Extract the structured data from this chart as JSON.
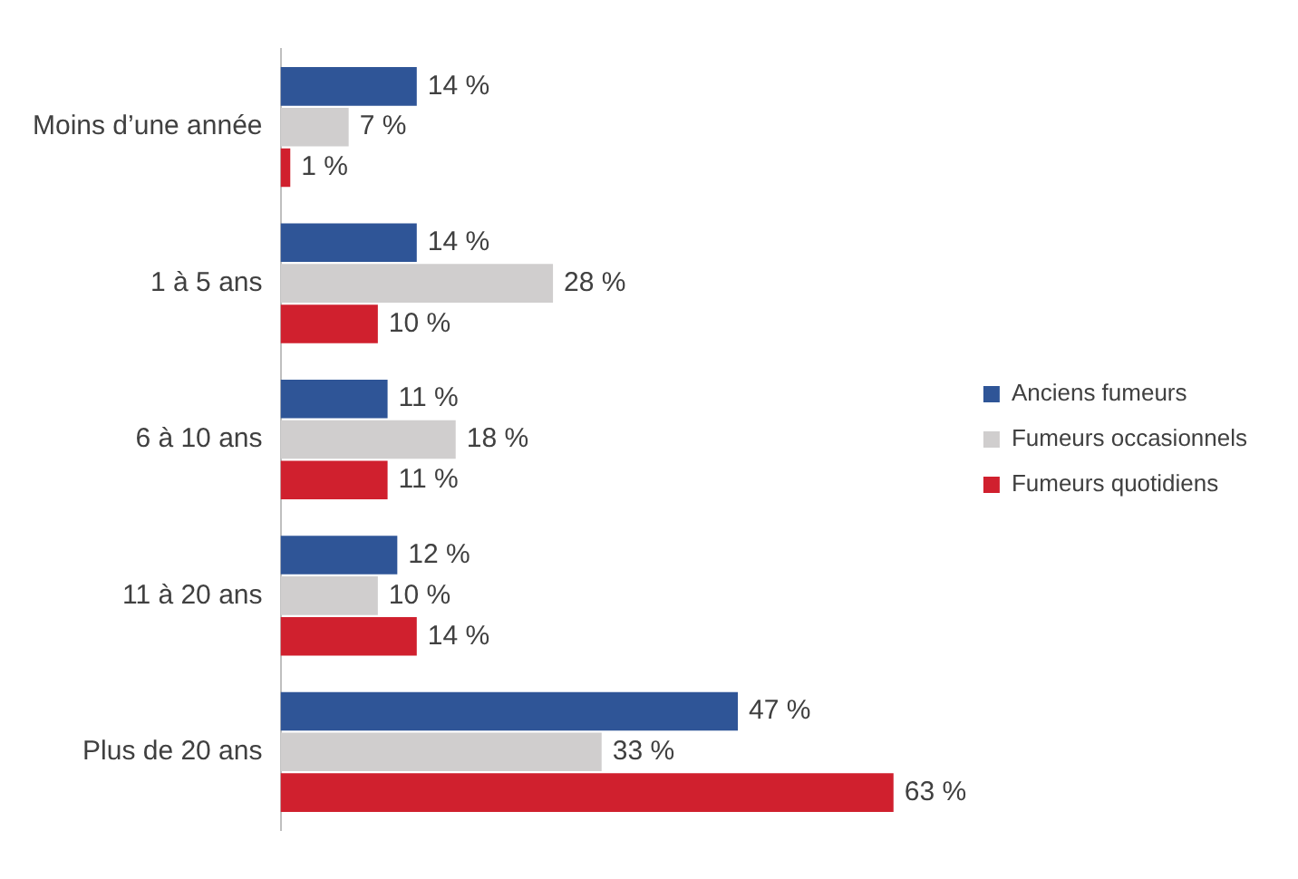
{
  "chart_data": {
    "type": "bar",
    "orientation": "horizontal",
    "categories": [
      "Moins d’une année",
      "1 à 5 ans",
      "6 à 10 ans",
      "11 à 20 ans",
      "Plus de 20 ans"
    ],
    "series": [
      {
        "name": "Anciens fumeurs",
        "color": "#2f5597",
        "values": [
          14,
          14,
          11,
          12,
          47
        ],
        "value_labels": [
          "14 %",
          "14 %",
          "11 %",
          "12 %",
          "47 %"
        ]
      },
      {
        "name": "Fumeurs occasionnels",
        "color": "#d0cece",
        "values": [
          7,
          28,
          18,
          10,
          33
        ],
        "value_labels": [
          "7 %",
          "28 %",
          "18 %",
          "10 %",
          "33 %"
        ]
      },
      {
        "name": "Fumeurs quotidiens",
        "color": "#d0202e",
        "values": [
          1,
          10,
          11,
          14,
          63
        ],
        "value_labels": [
          "1 %",
          "10 %",
          "11 %",
          "14 %",
          "63 %"
        ]
      }
    ],
    "legend": "right",
    "tick_labels": "y"
  }
}
